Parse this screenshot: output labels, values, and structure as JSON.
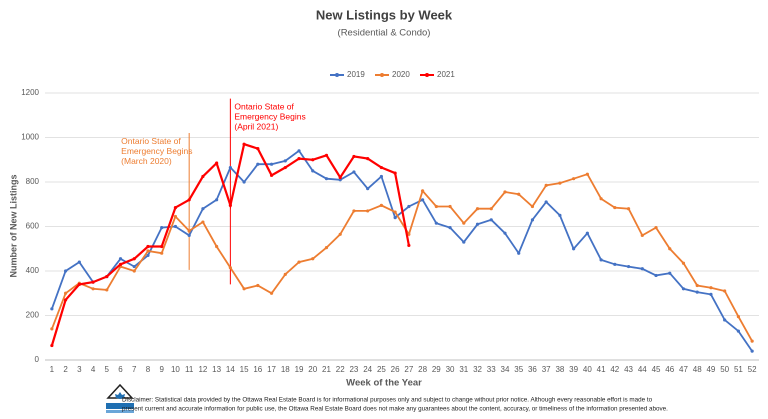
{
  "chart_data": {
    "type": "line",
    "title": "New Listings by Week",
    "subtitle": "(Residential & Condo)",
    "x_label": "Week of the Year",
    "y_label": "Number of New Listings",
    "categories": [
      "1",
      "2",
      "3",
      "4",
      "5",
      "6",
      "7",
      "8",
      "9",
      "10",
      "11",
      "12",
      "13",
      "14",
      "15",
      "16",
      "17",
      "18",
      "19",
      "20",
      "21",
      "22",
      "23",
      "24",
      "25",
      "26",
      "27",
      "28",
      "29",
      "30",
      "31",
      "32",
      "33",
      "34",
      "35",
      "36",
      "37",
      "38",
      "39",
      "40",
      "41",
      "42",
      "43",
      "44",
      "45",
      "46",
      "47",
      "48",
      "49",
      "50",
      "51",
      "52"
    ],
    "series": [
      {
        "name": "2019",
        "color": "#4472c4",
        "values": [
          230,
          400,
          440,
          350,
          375,
          455,
          420,
          470,
          595,
          600,
          560,
          680,
          720,
          865,
          800,
          880,
          880,
          895,
          940,
          850,
          815,
          810,
          845,
          770,
          825,
          640,
          690,
          720,
          615,
          595,
          530,
          610,
          630,
          570,
          480,
          630,
          710,
          650,
          500,
          570,
          450,
          430,
          420,
          410,
          380,
          390,
          320,
          305,
          295,
          180,
          130,
          40
        ]
      },
      {
        "name": "2020",
        "color": "#ed7d31",
        "values": [
          140,
          300,
          345,
          320,
          315,
          420,
          400,
          490,
          480,
          645,
          580,
          620,
          510,
          415,
          320,
          335,
          300,
          385,
          440,
          455,
          505,
          565,
          670,
          670,
          695,
          665,
          565,
          760,
          690,
          690,
          615,
          680,
          680,
          755,
          745,
          690,
          785,
          795,
          815,
          835,
          725,
          685,
          680,
          560,
          595,
          500,
          435,
          335,
          325,
          310,
          195,
          85
        ]
      },
      {
        "name": "2021",
        "color": "#ff0000",
        "values": [
          65,
          270,
          340,
          350,
          375,
          430,
          455,
          510,
          510,
          685,
          720,
          825,
          885,
          695,
          970,
          950,
          830,
          865,
          905,
          900,
          920,
          820,
          915,
          905,
          865,
          840,
          515,
          null,
          null,
          null,
          null,
          null,
          null,
          null,
          null,
          null,
          null,
          null,
          null,
          null,
          null,
          null,
          null,
          null,
          null,
          null,
          null,
          null,
          null,
          null,
          null,
          null
        ]
      }
    ],
    "ylim": [
      0,
      1200
    ],
    "yticks": [
      0,
      200,
      400,
      600,
      800,
      1000,
      1200
    ],
    "grid": true,
    "legend": "top",
    "annotations": [
      {
        "x": "11",
        "color": "#ed7d31",
        "lines": [
          "Ontario State of",
          "Emergency Begins",
          "(March 2020)"
        ]
      },
      {
        "x": "14",
        "color": "#ff0000",
        "lines": [
          "Ontario State of",
          "Emergency Begins",
          "(April 2021)"
        ]
      }
    ]
  },
  "disclaimer": [
    "Disclaimer: Statistical data provided by the Ottawa Real Estate Board is for informational purposes only and subject to change without prior notice. Although every reasonable effort is made to",
    "present current and accurate information for public use, the Ottawa Real Estate Board does not make any guarantees about the content, accuracy, or timeliness of the information presented above."
  ]
}
